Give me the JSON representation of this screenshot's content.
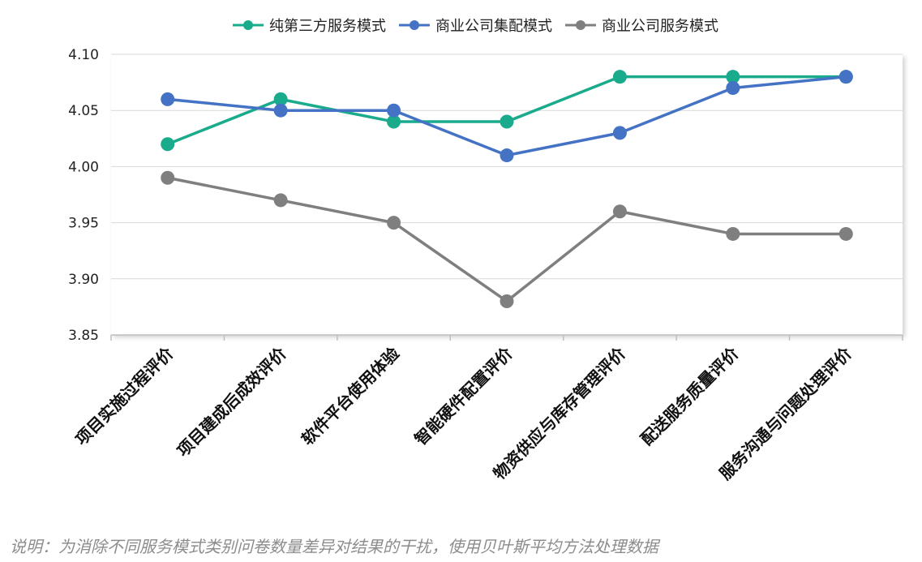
{
  "chart_data": {
    "type": "line",
    "categories": [
      "项目实施过程评价",
      "项目建成后成效评价",
      "软件平台使用体验",
      "智能硬件配置评价",
      "物资供应与库存管理评价",
      "配送服务质量评价",
      "服务沟通与问题处理评价"
    ],
    "series": [
      {
        "name": "纯第三方服务模式",
        "color": "#1aaa8c",
        "values": [
          4.02,
          4.06,
          4.04,
          4.04,
          4.08,
          4.08,
          4.08
        ]
      },
      {
        "name": "商业公司集配模式",
        "color": "#4472c4",
        "values": [
          4.06,
          4.05,
          4.05,
          4.01,
          4.03,
          4.07,
          4.08
        ]
      },
      {
        "name": "商业公司服务模式",
        "color": "#7f7f7f",
        "values": [
          3.99,
          3.97,
          3.95,
          3.88,
          3.96,
          3.94,
          3.94
        ]
      }
    ],
    "yticks": [
      "3.85",
      "3.90",
      "3.95",
      "4.00",
      "4.05",
      "4.10"
    ],
    "ylim": [
      3.85,
      4.1
    ],
    "grid": true,
    "legend": "top-center",
    "title": "",
    "xlabel": "",
    "ylabel": ""
  },
  "note": "说明：为消除不同服务模式类别问卷数量差异对结果的干扰，使用贝叶斯平均方法处理数据"
}
